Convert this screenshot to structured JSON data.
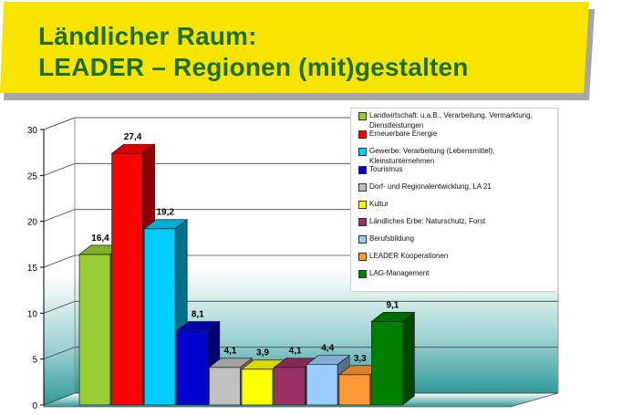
{
  "title": {
    "line1": "Ländlicher Raum:",
    "line2": "LEADER – Regionen (mit)gestalten"
  },
  "colors": {
    "banner": "#f7e500",
    "title": "#1e6e1e",
    "floor": "#2f9a9a"
  },
  "chart_data": {
    "type": "bar",
    "categories": [
      "Landwirtschaft: u.a.B., Verarbeitung, Vermarktung, Dienstleistungen",
      "Erneuerbare Energie",
      "Gewerbe: Verarbeitung (Lebensmittel), Kleinstunternehmen",
      "Tourismus",
      "Dorf- und Regionalentwicklung, LA 21",
      "Kultur",
      "Ländliches Erbe: Naturschutz, Forst",
      "Berufsbildung",
      "LEADER Kooperationen",
      "LAG-Management"
    ],
    "values": [
      16.4,
      27.4,
      19.2,
      8.1,
      4.1,
      3.9,
      4.1,
      4.4,
      3.3,
      9.1
    ],
    "value_labels": [
      "16,4",
      "27,4",
      "19,2",
      "8,1",
      "4,1",
      "3,9",
      "4,1",
      "4,4",
      "3,3",
      "9,1"
    ],
    "colors": [
      "#99cc33",
      "#ff0000",
      "#00ccff",
      "#0000cc",
      "#c0c0c0",
      "#ffff00",
      "#993366",
      "#99ccff",
      "#ff9933",
      "#008000"
    ],
    "yticks": [
      "0",
      "5",
      "10",
      "15",
      "20",
      "25",
      "30"
    ],
    "ylim": [
      0,
      30
    ],
    "grid": true,
    "legend_position": "top-right",
    "style": "3d"
  }
}
